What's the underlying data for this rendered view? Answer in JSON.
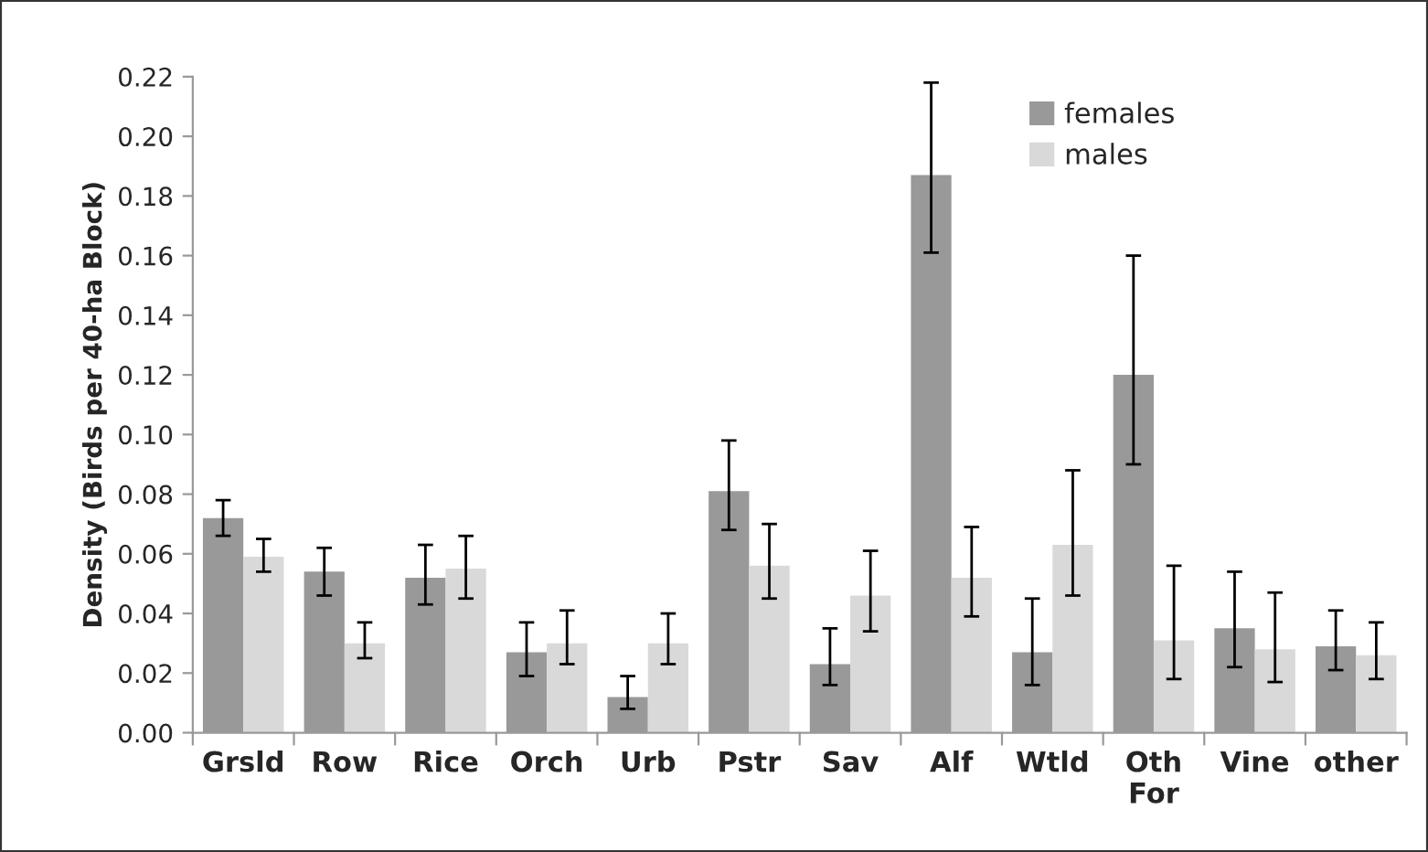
{
  "chart_data": {
    "type": "bar",
    "ylabel": "Density (Birds per 40-ha Block)",
    "categories": [
      "Grsld",
      "Row",
      "Rice",
      "Orch",
      "Urb",
      "Pstr",
      "Sav",
      "Alf",
      "Wtld",
      "Oth\nFor",
      "Vine",
      "other"
    ],
    "series": [
      {
        "name": "females",
        "color": "#999999",
        "values": [
          0.072,
          0.054,
          0.052,
          0.027,
          0.012,
          0.081,
          0.023,
          0.187,
          0.027,
          0.12,
          0.035,
          0.029
        ],
        "errors": [
          [
            0.066,
            0.078
          ],
          [
            0.046,
            0.062
          ],
          [
            0.043,
            0.063
          ],
          [
            0.019,
            0.037
          ],
          [
            0.008,
            0.019
          ],
          [
            0.068,
            0.098
          ],
          [
            0.016,
            0.035
          ],
          [
            0.161,
            0.218
          ],
          [
            0.016,
            0.045
          ],
          [
            0.09,
            0.16
          ],
          [
            0.022,
            0.054
          ],
          [
            0.021,
            0.041
          ]
        ]
      },
      {
        "name": "males",
        "color": "#d9d9d9",
        "values": [
          0.059,
          0.03,
          0.055,
          0.03,
          0.03,
          0.056,
          0.046,
          0.052,
          0.063,
          0.031,
          0.028,
          0.026
        ],
        "errors": [
          [
            0.054,
            0.065
          ],
          [
            0.025,
            0.037
          ],
          [
            0.045,
            0.066
          ],
          [
            0.023,
            0.041
          ],
          [
            0.023,
            0.04
          ],
          [
            0.045,
            0.07
          ],
          [
            0.034,
            0.061
          ],
          [
            0.039,
            0.069
          ],
          [
            0.046,
            0.088
          ],
          [
            0.018,
            0.056
          ],
          [
            0.017,
            0.047
          ],
          [
            0.018,
            0.037
          ]
        ]
      }
    ],
    "ylim": [
      0,
      0.22
    ],
    "yticks": [
      {
        "value": 0,
        "label": "0.00"
      },
      {
        "value": 0.02,
        "label": "0.02"
      },
      {
        "value": 0.04,
        "label": "0.04"
      },
      {
        "value": 0.06,
        "label": "0.06"
      },
      {
        "value": 0.08,
        "label": "0.08"
      },
      {
        "value": 0.1,
        "label": "0.10"
      },
      {
        "value": 0.12,
        "label": "0.12"
      },
      {
        "value": 0.14,
        "label": "0.14"
      },
      {
        "value": 0.16,
        "label": "0.16"
      },
      {
        "value": 0.18,
        "label": "0.18"
      },
      {
        "value": 0.2,
        "label": "0.20"
      },
      {
        "value": 0.22,
        "label": "0.22"
      }
    ],
    "grid": false,
    "legend": "top right"
  }
}
